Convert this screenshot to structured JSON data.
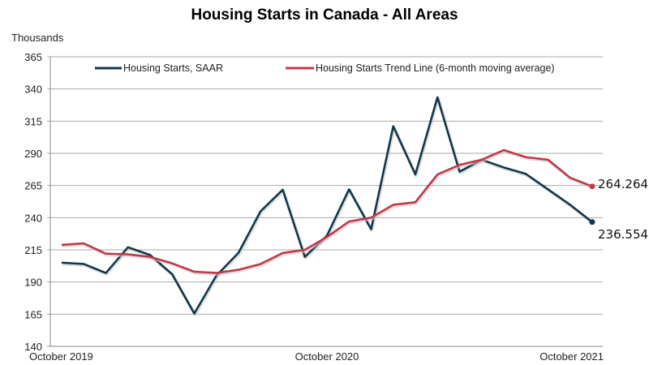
{
  "chart_data": {
    "type": "line",
    "title": "Housing Starts in Canada - All Areas",
    "ylabel": "Thousands",
    "xlabel": "",
    "ylim": [
      140,
      365
    ],
    "yticks": [
      140,
      165,
      190,
      215,
      240,
      265,
      290,
      315,
      340,
      365
    ],
    "x": [
      "Oct 2019",
      "Nov 2019",
      "Dec 2019",
      "Jan 2020",
      "Feb 2020",
      "Mar 2020",
      "Apr 2020",
      "May 2020",
      "Jun 2020",
      "Jul 2020",
      "Aug 2020",
      "Sep 2020",
      "Oct 2020",
      "Nov 2020",
      "Dec 2020",
      "Jan 2021",
      "Feb 2021",
      "Mar 2021",
      "Apr 2021",
      "May 2021",
      "Jun 2021",
      "Jul 2021",
      "Aug 2021",
      "Sep 2021",
      "Oct 2021"
    ],
    "xtick_labels": [
      {
        "index": 0,
        "label": "October 2019"
      },
      {
        "index": 12,
        "label": "October 2020"
      },
      {
        "index": 24,
        "label": "October 2021"
      }
    ],
    "grid": "horizontal",
    "legend_position": "top",
    "series": [
      {
        "name": "Housing Starts, SAAR",
        "color": "#13364a",
        "values": [
          205,
          204,
          197,
          217,
          211,
          196,
          165.5,
          195,
          212.7,
          245,
          261.7,
          209.5,
          226,
          262,
          231,
          311,
          273.6,
          333.5,
          275.7,
          285,
          279,
          274,
          262,
          250,
          236.554
        ],
        "end_label": "236.554"
      },
      {
        "name": "Housing Starts Trend Line (6-month moving average)",
        "color": "#c0394a",
        "values": [
          218.8,
          220,
          212,
          211.5,
          209.5,
          204.5,
          198,
          197,
          199.5,
          204,
          212.5,
          215,
          225,
          237,
          240,
          250,
          252,
          273.6,
          281,
          285,
          292.5,
          287,
          285,
          271,
          264.264
        ],
        "end_label": "264.264"
      }
    ]
  }
}
